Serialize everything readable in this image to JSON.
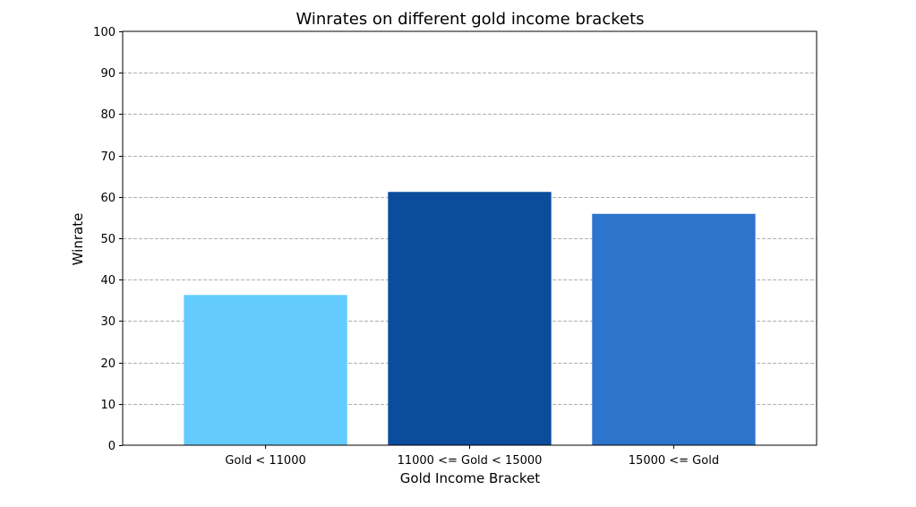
{
  "chart_data": {
    "type": "bar",
    "title": "Winrates on different gold income brackets",
    "xlabel": "Gold Income Bracket",
    "ylabel": "Winrate",
    "categories": [
      "Gold < 11000",
      "11000 <= Gold < 15000",
      "15000 <= Gold"
    ],
    "values": [
      36.3,
      61.2,
      55.9
    ],
    "colors": [
      "#63cbfd",
      "#0b4d9c",
      "#2d74cd"
    ],
    "ylim": [
      0,
      100
    ],
    "yticks": [
      0,
      10,
      20,
      30,
      40,
      50,
      60,
      70,
      80,
      90,
      100
    ],
    "grid": {
      "axis": "y",
      "style": "dashed",
      "color": "#b0b0b0"
    },
    "legend": "none"
  }
}
